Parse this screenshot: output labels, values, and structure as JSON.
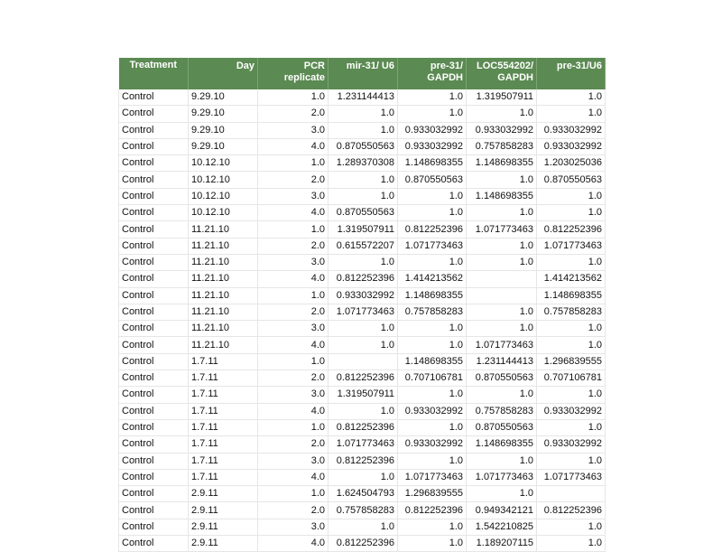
{
  "table": {
    "columns": [
      "Treatment",
      "Day",
      "PCR replicate",
      "mir-31/ U6",
      "pre-31/ GAPDH",
      "LOC554202/ GAPDH",
      "pre-31/U6"
    ],
    "rows": [
      [
        "Control",
        "9.29.10",
        "1.0",
        "1.231144413",
        "1.0",
        "1.319507911",
        "1.0"
      ],
      [
        "Control",
        "9.29.10",
        "2.0",
        "1.0",
        "1.0",
        "1.0",
        "1.0"
      ],
      [
        "Control",
        "9.29.10",
        "3.0",
        "1.0",
        "0.933032992",
        "0.933032992",
        "0.933032992"
      ],
      [
        "Control",
        "9.29.10",
        "4.0",
        "0.870550563",
        "0.933032992",
        "0.757858283",
        "0.933032992"
      ],
      [
        "Control",
        "10.12.10",
        "1.0",
        "1.289370308",
        "1.148698355",
        "1.148698355",
        "1.203025036"
      ],
      [
        "Control",
        "10.12.10",
        "2.0",
        "1.0",
        "0.870550563",
        "1.0",
        "0.870550563"
      ],
      [
        "Control",
        "10.12.10",
        "3.0",
        "1.0",
        "1.0",
        "1.148698355",
        "1.0"
      ],
      [
        "Control",
        "10.12.10",
        "4.0",
        "0.870550563",
        "1.0",
        "1.0",
        "1.0"
      ],
      [
        "Control",
        "11.21.10",
        "1.0",
        "1.319507911",
        "0.812252396",
        "1.071773463",
        "0.812252396"
      ],
      [
        "Control",
        "11.21.10",
        "2.0",
        "0.615572207",
        "1.071773463",
        "1.0",
        "1.071773463"
      ],
      [
        "Control",
        "11.21.10",
        "3.0",
        "1.0",
        "1.0",
        "1.0",
        "1.0"
      ],
      [
        "Control",
        "11.21.10",
        "4.0",
        "0.812252396",
        "1.414213562",
        "",
        "1.414213562"
      ],
      [
        "Control",
        "11.21.10",
        "1.0",
        "0.933032992",
        "1.148698355",
        "",
        "1.148698355"
      ],
      [
        "Control",
        "11.21.10",
        "2.0",
        "1.071773463",
        "0.757858283",
        "1.0",
        "0.757858283"
      ],
      [
        "Control",
        "11.21.10",
        "3.0",
        "1.0",
        "1.0",
        "1.0",
        "1.0"
      ],
      [
        "Control",
        "11.21.10",
        "4.0",
        "1.0",
        "1.0",
        "1.071773463",
        "1.0"
      ],
      [
        "Control",
        "1.7.11",
        "1.0",
        "",
        "1.148698355",
        "1.231144413",
        "1.296839555"
      ],
      [
        "Control",
        "1.7.11",
        "2.0",
        "0.812252396",
        "0.707106781",
        "0.870550563",
        "0.707106781"
      ],
      [
        "Control",
        "1.7.11",
        "3.0",
        "1.319507911",
        "1.0",
        "1.0",
        "1.0"
      ],
      [
        "Control",
        "1.7.11",
        "4.0",
        "1.0",
        "0.933032992",
        "0.757858283",
        "0.933032992"
      ],
      [
        "Control",
        "1.7.11",
        "1.0",
        "0.812252396",
        "1.0",
        "0.870550563",
        "1.0"
      ],
      [
        "Control",
        "1.7.11",
        "2.0",
        "1.071773463",
        "0.933032992",
        "1.148698355",
        "0.933032992"
      ],
      [
        "Control",
        "1.7.11",
        "3.0",
        "0.812252396",
        "1.0",
        "1.0",
        "1.0"
      ],
      [
        "Control",
        "1.7.11",
        "4.0",
        "1.0",
        "1.071773463",
        "1.071773463",
        "1.071773463"
      ],
      [
        "Control",
        "2.9.11",
        "1.0",
        "1.624504793",
        "1.296839555",
        "1.0",
        ""
      ],
      [
        "Control",
        "2.9.11",
        "2.0",
        "0.757858283",
        "0.812252396",
        "0.949342121",
        "0.812252396"
      ],
      [
        "Control",
        "2.9.11",
        "3.0",
        "1.0",
        "1.0",
        "1.542210825",
        "1.0"
      ],
      [
        "Control",
        "2.9.11",
        "4.0",
        "0.812252396",
        "1.0",
        "1.189207115",
        "1.0"
      ]
    ]
  },
  "colors": {
    "header_bg": "#5b8a52",
    "header_text": "#ffffff",
    "gridline": "#e6e6e6"
  }
}
